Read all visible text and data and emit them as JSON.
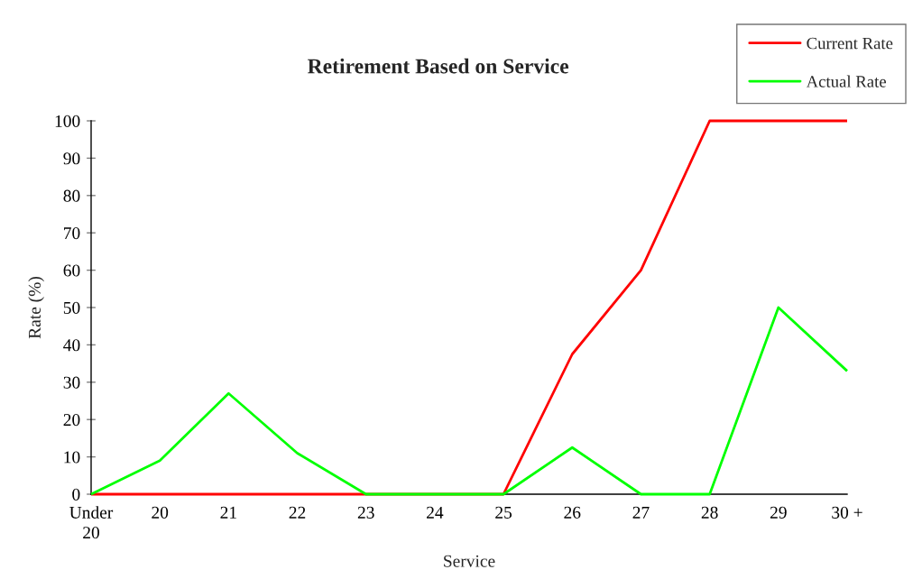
{
  "chart_data": {
    "type": "line",
    "title": "Retirement Based on Service",
    "xlabel": "Service",
    "ylabel": "Rate (%)",
    "categories": [
      "Under\n20",
      "20",
      "21",
      "22",
      "23",
      "24",
      "25",
      "26",
      "27",
      "28",
      "29",
      "30 +"
    ],
    "series": [
      {
        "name": "Current Rate",
        "color": "#ff0000",
        "values": [
          0,
          0,
          0,
          0,
          0,
          0,
          0,
          37.5,
          60,
          100,
          100,
          100
        ]
      },
      {
        "name": "Actual Rate",
        "color": "#00ff00",
        "values": [
          0,
          9,
          27,
          11,
          0,
          0,
          0,
          12.5,
          0,
          0,
          50,
          33
        ]
      }
    ],
    "ylim": [
      0,
      100
    ],
    "yticks": [
      0,
      10,
      20,
      30,
      40,
      50,
      60,
      70,
      80,
      90,
      100
    ],
    "legend": "top right"
  }
}
